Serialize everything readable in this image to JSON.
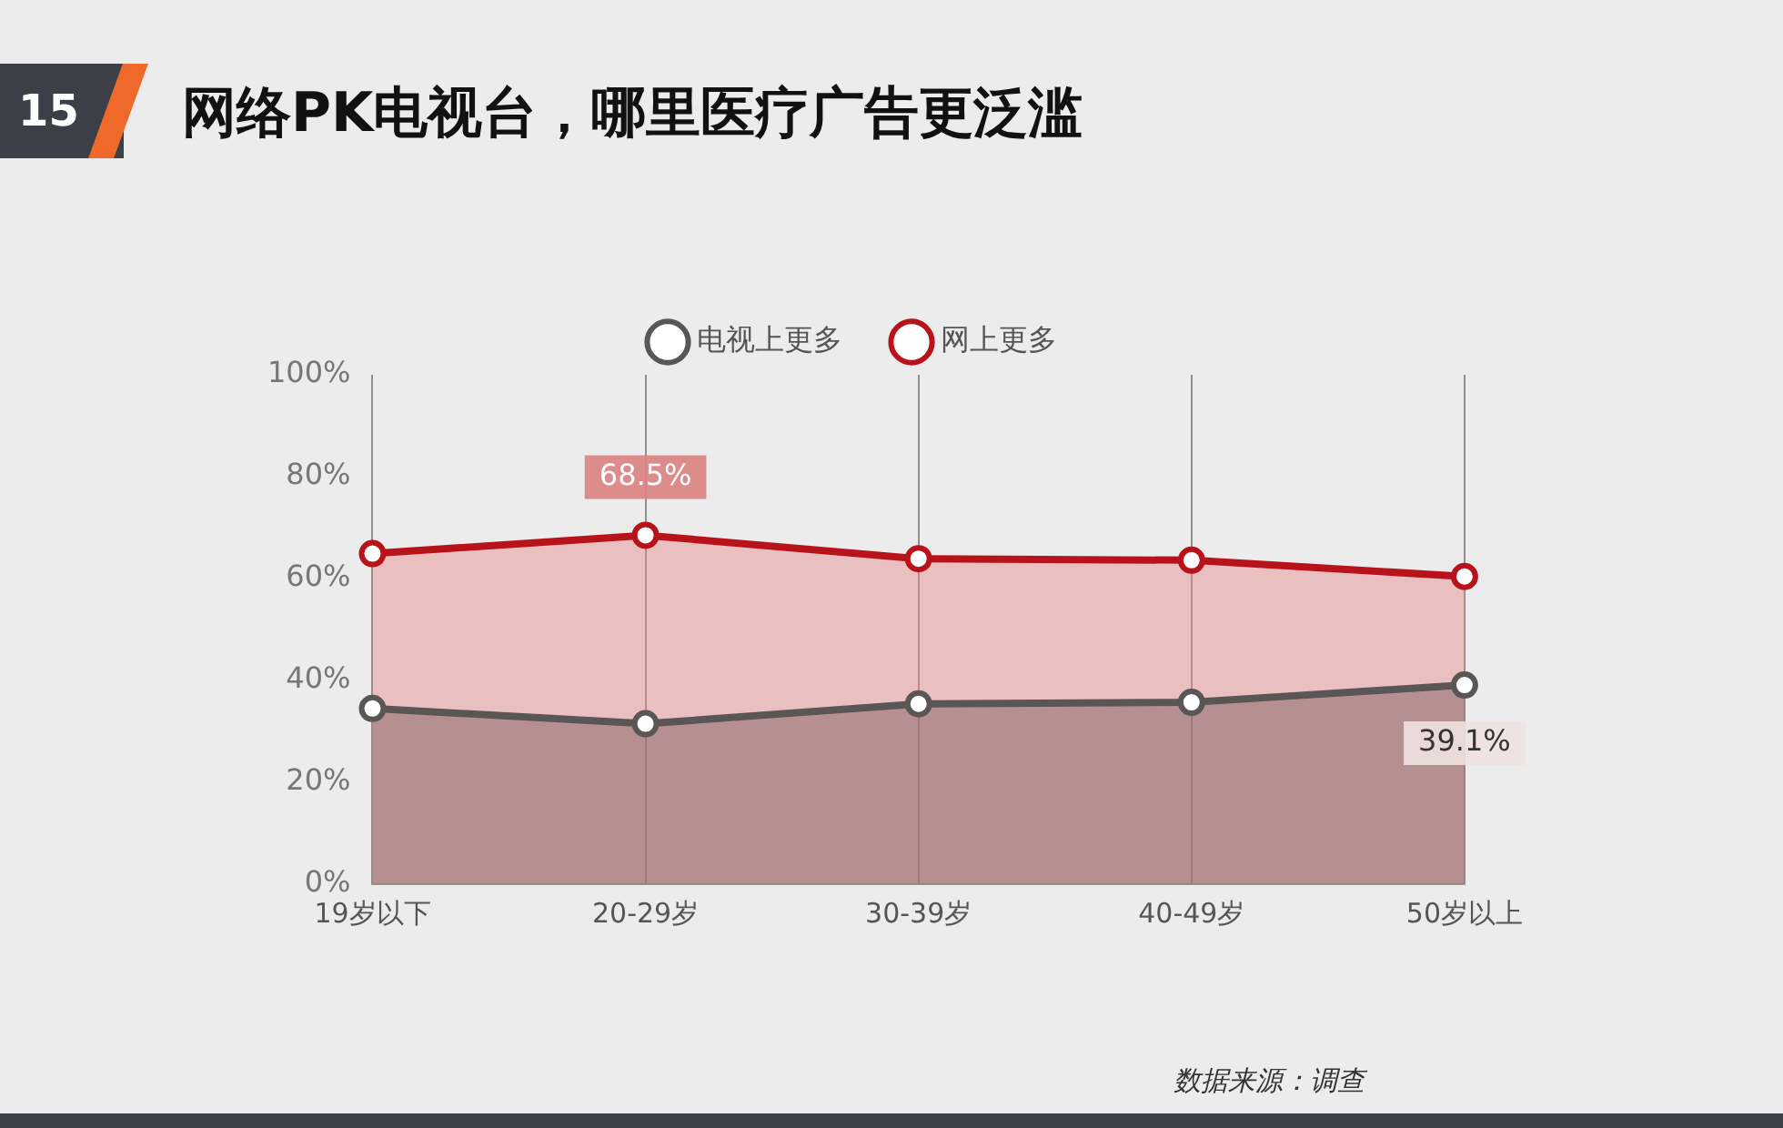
{
  "chart_data": {
    "type": "area",
    "title": "网络PK电视台，哪里医疗广告更泛滥",
    "categories": [
      "19岁以下",
      "20-29岁",
      "30-39岁",
      "40-49岁",
      "50岁以上"
    ],
    "series": [
      {
        "name": "网上更多",
        "color": "#b8121b",
        "values": [
          64.9,
          68.5,
          63.9,
          63.6,
          60.4
        ],
        "value_labels": [
          null,
          "68.5%",
          null,
          null,
          null
        ]
      },
      {
        "name": "电视上更多",
        "color": "#5a5656",
        "values": [
          34.5,
          31.5,
          35.4,
          35.7,
          39.1
        ],
        "value_labels": [
          null,
          null,
          null,
          null,
          "39.1%"
        ]
      }
    ],
    "ylim": [
      0,
      100
    ],
    "yticks": [
      {
        "value": 0,
        "label": "0%"
      },
      {
        "value": 20,
        "label": "20%"
      },
      {
        "value": 40,
        "label": "40%"
      },
      {
        "value": 60,
        "label": "60%"
      },
      {
        "value": 80,
        "label": "80%"
      },
      {
        "value": 100,
        "label": "100%"
      }
    ],
    "grid": "x",
    "legend": "top",
    "marker": "circle",
    "line_style": "solid",
    "annotations": [
      "15",
      "数据来源：调查"
    ]
  }
}
